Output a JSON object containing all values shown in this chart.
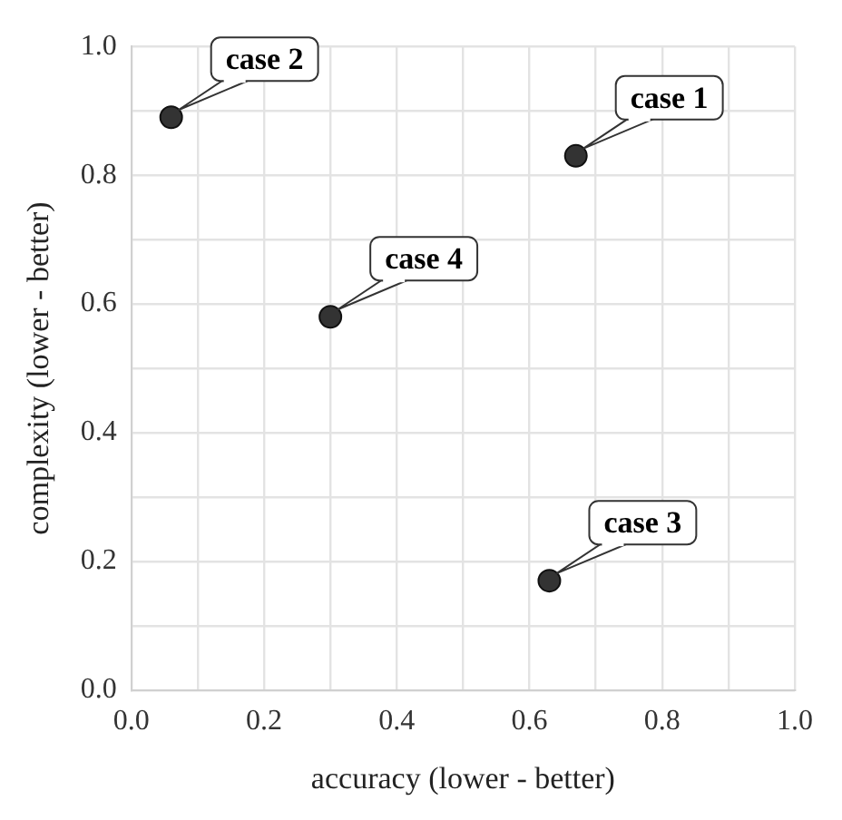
{
  "chart_data": {
    "type": "scatter",
    "xlabel": "accuracy (lower - better)",
    "ylabel": "complexity (lower - better)",
    "x": [
      0.67,
      0.06,
      0.63,
      0.3
    ],
    "values": [
      0.83,
      0.89,
      0.17,
      0.58
    ],
    "color": "#333333",
    "marker": "circle",
    "grid": true,
    "xlim": [
      0,
      1
    ],
    "ylim": [
      0,
      1
    ],
    "xticks": [
      {
        "value": 0,
        "label": "0.0"
      },
      {
        "value": 0.1,
        "label": null
      },
      {
        "value": 0.2,
        "label": "0.2"
      },
      {
        "value": 0.3,
        "label": null
      },
      {
        "value": 0.4,
        "label": "0.4"
      },
      {
        "value": 0.5,
        "label": null
      },
      {
        "value": 0.6,
        "label": "0.6"
      },
      {
        "value": 0.7,
        "label": null
      },
      {
        "value": 0.8,
        "label": "0.8"
      },
      {
        "value": 0.9,
        "label": null
      },
      {
        "value": 1,
        "label": "1.0"
      }
    ],
    "yticks": [
      {
        "value": 0,
        "label": "0.0"
      },
      {
        "value": 0.1,
        "label": null
      },
      {
        "value": 0.2,
        "label": "0.2"
      },
      {
        "value": 0.3,
        "label": null
      },
      {
        "value": 0.4,
        "label": "0.4"
      },
      {
        "value": 0.5,
        "label": null
      },
      {
        "value": 0.6,
        "label": "0.6"
      },
      {
        "value": 0.7,
        "label": null
      },
      {
        "value": 0.8,
        "label": "0.8"
      },
      {
        "value": 0.9,
        "label": null
      },
      {
        "value": 1,
        "label": "1.0"
      }
    ],
    "annotations": [
      {
        "text": "case 1",
        "x": 0.67,
        "y": 0.83
      },
      {
        "text": "case 2",
        "x": 0.06,
        "y": 0.89
      },
      {
        "text": "case 3",
        "x": 0.63,
        "y": 0.17
      },
      {
        "text": "case 4",
        "x": 0.3,
        "y": 0.58
      }
    ]
  }
}
